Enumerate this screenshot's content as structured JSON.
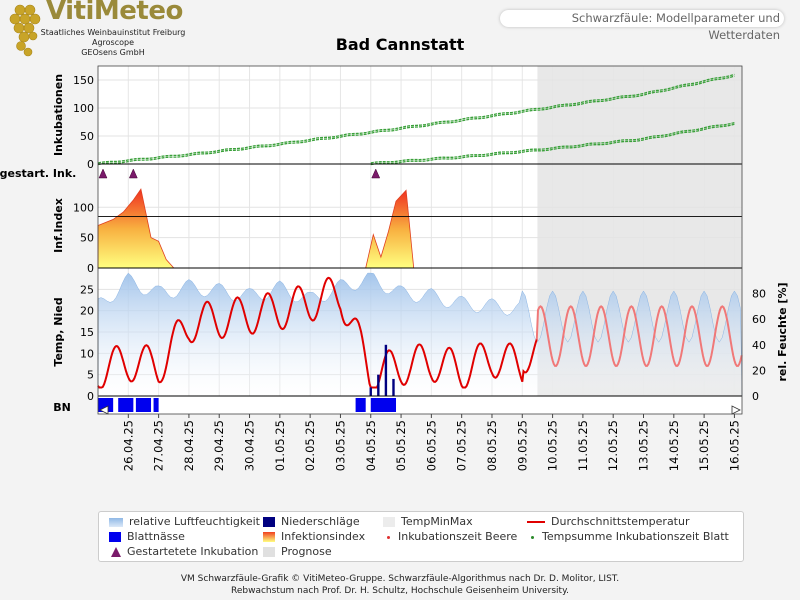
{
  "header": {
    "logo_title": "VitiMeteo",
    "logo_lines": [
      "Staatliches Weinbauinstitut Freiburg",
      "Agroscope",
      "GEOsens GmbH"
    ],
    "page_title": "Schwarzfäule: Modellparameter und Wetterdaten",
    "station": "Bad Cannstatt"
  },
  "chart_data": [
    {
      "type": "line",
      "panel": "inkubationen",
      "ylabel": "Inkubationen",
      "ylim": [
        0,
        175
      ],
      "yticks": [
        0,
        50,
        100,
        150
      ],
      "x_range": [
        "25.04.25",
        "16.05.25"
      ],
      "forecast_from": "09.05.25 12:00",
      "series": [
        {
          "name": "Inkubationszeit Beere",
          "dates": [
            "25.04.25",
            "28.04.25",
            "01.05.25",
            "04.05.25",
            "07.05.25",
            "10.05.25",
            "13.05.25",
            "16.05.25"
          ],
          "values": [
            0,
            16,
            35,
            56,
            78,
            101,
            124,
            158
          ],
          "color": "#3aa03a"
        },
        {
          "name": "Tempsumme Inkubationszeit Blatt",
          "dates": [
            "04.05.25",
            "07.05.25",
            "09.05.25",
            "10.05.25",
            "13.05.25",
            "16.05.25"
          ],
          "values": [
            0,
            12,
            22,
            27,
            44,
            72
          ],
          "color": "#3aa03a"
        }
      ]
    },
    {
      "type": "scatter",
      "panel": "gestartete-inkubation",
      "ylabel": "gestart. Ink.",
      "series": [
        {
          "name": "Gestartetete Inkubation",
          "dates": [
            "25.04.25",
            "26.04.25",
            "04.05.25"
          ],
          "color": "#7a1a6a"
        }
      ]
    },
    {
      "type": "area",
      "panel": "infektionsindex",
      "ylabel": "Inf.Index",
      "ylim": [
        0,
        140
      ],
      "yticks": [
        0,
        50,
        100
      ],
      "threshold": 85,
      "series": [
        {
          "name": "Infektionsindex",
          "dates": [
            "25.04.25 00:00",
            "25.04.25 12:00",
            "25.04.25 20:00",
            "26.04.25 04:00",
            "26.04.25 10:00",
            "26.04.25 18:00",
            "27.04.25 00:00",
            "27.04.25 06:00",
            "27.04.25 12:00",
            "03.05.25 20:00",
            "04.05.25 02:00",
            "04.05.25 08:00",
            "04.05.25 14:00",
            "04.05.25 20:00",
            "05.05.25 04:00",
            "05.05.25 10:00"
          ],
          "values": [
            70,
            80,
            92,
            112,
            130,
            50,
            44,
            14,
            0,
            0,
            55,
            18,
            60,
            110,
            128,
            0
          ]
        }
      ]
    },
    {
      "type": "line",
      "panel": "temperatur-feuchte",
      "ylabel": "Temp, Nied",
      "ylabel_right": "rel. Feuchte [%]",
      "ylim": [
        0,
        30
      ],
      "yticks": [
        0,
        5,
        10,
        15,
        20,
        25
      ],
      "ylim_right": [
        0,
        100
      ],
      "yticks_right": [
        0,
        20,
        40,
        60,
        80
      ],
      "series": [
        {
          "name": "Durchschnittstemperatur",
          "dates": [
            "25.04.25",
            "26.04.25",
            "27.04.25",
            "28.04.25",
            "29.04.25",
            "30.04.25",
            "01.05.25",
            "02.05.25",
            "03.05.25",
            "04.05.25",
            "05.05.25",
            "06.05.25",
            "07.05.25",
            "08.05.25",
            "09.05.25"
          ],
          "values": [
            10,
            12,
            11,
            21,
            22,
            23,
            24,
            26,
            28,
            9,
            11,
            12,
            10,
            13,
            11
          ],
          "color": "#e00000"
        },
        {
          "name": "relative Luftfeuchtigkeit",
          "dates": [
            "25.04.25",
            "26.04.25",
            "27.04.25",
            "28.04.25",
            "29.04.25",
            "30.04.25",
            "01.05.25",
            "02.05.25",
            "03.05.25",
            "04.05.25",
            "05.05.25",
            "06.05.25",
            "07.05.25",
            "08.05.25",
            "09.05.25"
          ],
          "values": [
            70,
            90,
            80,
            85,
            82,
            78,
            84,
            75,
            85,
            92,
            80,
            78,
            72,
            70,
            68
          ],
          "color": "#a8c8ec"
        },
        {
          "name": "Niederschläge",
          "dates": [
            "04.05.25 00:00",
            "04.05.25 06:00",
            "04.05.25 12:00",
            "04.05.25 18:00"
          ],
          "values": [
            2,
            5,
            12,
            4
          ],
          "color": "#000080"
        }
      ]
    },
    {
      "type": "bar",
      "panel": "blattnaesse",
      "ylabel": "BN",
      "series": [
        {
          "name": "Blattnässe",
          "intervals": [
            [
              "25.04.25 00:00",
              "25.04.25 12:00"
            ],
            [
              "25.04.25 16:00",
              "26.04.25 04:00"
            ],
            [
              "26.04.25 06:00",
              "26.04.25 18:00"
            ],
            [
              "26.04.25 20:00",
              "27.04.25 00:00"
            ],
            [
              "03.05.25 12:00",
              "03.05.25 20:00"
            ],
            [
              "04.05.25 00:00",
              "04.05.25 20:00"
            ]
          ],
          "color": "#0000ee"
        }
      ]
    }
  ],
  "x_axis": {
    "ticks": [
      "26.04.25",
      "27.04.25",
      "28.04.25",
      "29.04.25",
      "30.04.25",
      "01.05.25",
      "02.05.25",
      "03.05.25",
      "04.05.25",
      "05.05.25",
      "06.05.25",
      "07.05.25",
      "08.05.25",
      "09.05.25",
      "10.05.25",
      "11.05.25",
      "12.05.25",
      "13.05.25",
      "14.05.25",
      "15.05.25",
      "16.05.25"
    ]
  },
  "legend": {
    "items": [
      {
        "label": "relative Luftfeuchtigkeit",
        "swatch": "rf"
      },
      {
        "label": "Niederschläge",
        "swatch": "nied"
      },
      {
        "label": "TempMinMax",
        "swatch": "tmm"
      },
      {
        "label": "Durchschnittstemperatur",
        "swatch": "line-red"
      },
      {
        "label": "Blattnässe",
        "swatch": "bn"
      },
      {
        "label": "Infektionsindex",
        "swatch": "inf"
      },
      {
        "label": "Inkubationszeit Beere",
        "swatch": "dot-red"
      },
      {
        "label": "Tempsumme Inkubationszeit Blatt",
        "swatch": "dot-green"
      },
      {
        "label": "Gestartetete Inkubation",
        "swatch": "tri"
      },
      {
        "label": "Prognose",
        "swatch": "prog"
      }
    ]
  },
  "footer": {
    "line1": "VM Schwarzfäule-Grafik © VitiMeteo-Gruppe. Schwarzfäule-Algorithmus nach Dr. D. Molitor, LIST.",
    "line2": "Rebwachstum nach Prof. Dr. H. Schultz, Hochschule Geisenheim University."
  }
}
